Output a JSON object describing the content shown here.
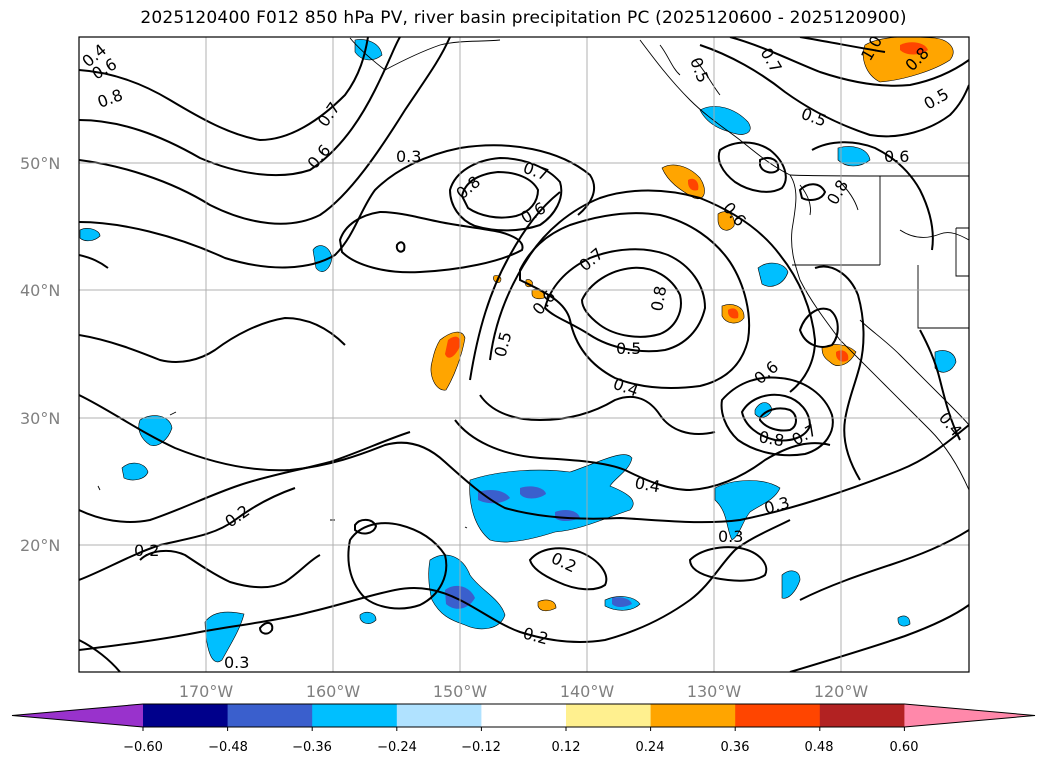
{
  "title": "2025120400 F012 850 hPa PV, river basin precipitation PC (2025120600 - 2025120900)",
  "lat_labels": [
    "50°N",
    "40°N",
    "30°N",
    "20°N"
  ],
  "lon_labels": [
    "170°W",
    "160°W",
    "150°W",
    "140°W",
    "130°W",
    "120°W"
  ],
  "contour_labels": [
    "0.4",
    "0.6",
    "0.8",
    "0.6",
    "0.7",
    "0.3",
    "0.8",
    "0.7",
    "0.6",
    "0.7",
    "0.8",
    "0.6",
    "0.5",
    "0.5",
    "0.4",
    "0.6",
    "0.8",
    "0.7",
    "0.4",
    "0.3",
    "0.3",
    "0.2",
    "0.2",
    "0.2",
    "0.2",
    "0.3",
    "0.5",
    "0.7",
    "0.6",
    "0.6",
    "0.8",
    "0.5",
    "0.5",
    "1.0",
    "0.8",
    "0.4"
  ],
  "colorbar": {
    "ticks": [
      "−0.60",
      "−0.48",
      "−0.36",
      "−0.24",
      "−0.12",
      "0.12",
      "0.24",
      "0.36",
      "0.48",
      "0.60"
    ],
    "colors": [
      "#9932cc",
      "#00008b",
      "#3a5fcd",
      "#00bfff",
      "#b0e2ff",
      "#ffffff",
      "#fff08f",
      "#ffa500",
      "#ff4500",
      "#b22222",
      "#ff88aa"
    ]
  }
}
